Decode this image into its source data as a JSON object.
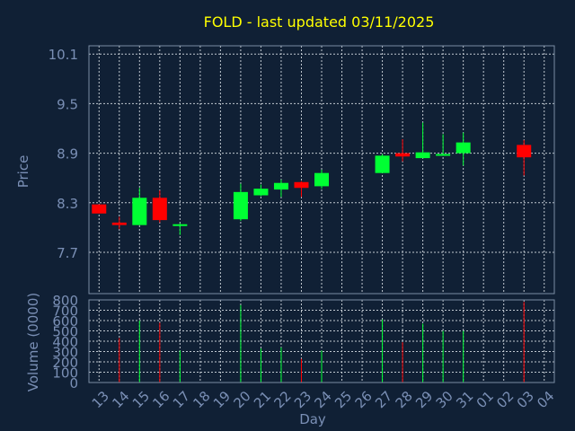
{
  "chart_data": {
    "type": "candlestick",
    "title": "FOLD - last updated 03/11/2025",
    "xlabel": "Day",
    "ylabel_price": "Price",
    "ylabel_volume": "Volume (0000)",
    "price_ticks": [
      "10.1",
      "9.5",
      "8.9",
      "8.3",
      "7.7"
    ],
    "price_tick_values": [
      10.1,
      9.5,
      8.9,
      8.3,
      7.7
    ],
    "price_range": [
      7.2,
      10.2
    ],
    "volume_ticks": [
      "0",
      "100",
      "200",
      "300",
      "400",
      "500",
      "600",
      "700",
      "800"
    ],
    "volume_tick_values": [
      0,
      100,
      200,
      300,
      400,
      500,
      600,
      700,
      800
    ],
    "volume_range": [
      0,
      800
    ],
    "x_ticks": [
      "13",
      "14",
      "15",
      "16",
      "17",
      "18",
      "19",
      "20",
      "21",
      "22",
      "23",
      "24",
      "25",
      "26",
      "27",
      "28",
      "29",
      "30",
      "31",
      "01",
      "02",
      "03",
      "04"
    ],
    "up_color": "#00ff33",
    "down_color": "#ff0000",
    "candles": [
      {
        "day": "13",
        "open": 8.28,
        "high": 8.28,
        "low": 8.17,
        "close": 8.17
      },
      {
        "day": "14",
        "open": 8.06,
        "high": 8.13,
        "low": 7.98,
        "close": 8.03,
        "volume": 430
      },
      {
        "day": "15",
        "open": 8.03,
        "high": 8.48,
        "low": 8.03,
        "close": 8.36,
        "volume": 600
      },
      {
        "day": "16",
        "open": 8.36,
        "high": 8.45,
        "low": 8.06,
        "close": 8.09,
        "volume": 580
      },
      {
        "day": "17",
        "open": 8.02,
        "high": 8.05,
        "low": 7.91,
        "close": 8.04,
        "volume": 310
      },
      {
        "day": "20",
        "open": 8.1,
        "high": 8.53,
        "low": 8.08,
        "close": 8.43,
        "volume": 750
      },
      {
        "day": "21",
        "open": 8.39,
        "high": 8.52,
        "low": 8.38,
        "close": 8.47,
        "volume": 330
      },
      {
        "day": "22",
        "open": 8.46,
        "high": 8.58,
        "low": 8.37,
        "close": 8.54,
        "volume": 340
      },
      {
        "day": "23",
        "open": 8.55,
        "high": 8.56,
        "low": 8.37,
        "close": 8.48,
        "volume": 230
      },
      {
        "day": "24",
        "open": 8.5,
        "high": 8.7,
        "low": 8.47,
        "close": 8.66,
        "volume": 310
      },
      {
        "day": "27",
        "open": 8.66,
        "high": 8.89,
        "low": 8.66,
        "close": 8.87,
        "volume": 610
      },
      {
        "day": "28",
        "open": 8.9,
        "high": 9.07,
        "low": 8.8,
        "close": 8.86,
        "volume": 390
      },
      {
        "day": "29",
        "open": 8.84,
        "high": 9.27,
        "low": 8.84,
        "close": 8.91,
        "volume": 570
      },
      {
        "day": "30",
        "open": 8.88,
        "high": 9.13,
        "low": 8.87,
        "close": 8.89,
        "volume": 500
      },
      {
        "day": "31",
        "open": 8.9,
        "high": 9.15,
        "low": 8.75,
        "close": 9.03,
        "volume": 500
      },
      {
        "day": "03",
        "open": 9.0,
        "high": 9.06,
        "low": 8.63,
        "close": 8.85,
        "volume": 780
      }
    ]
  }
}
